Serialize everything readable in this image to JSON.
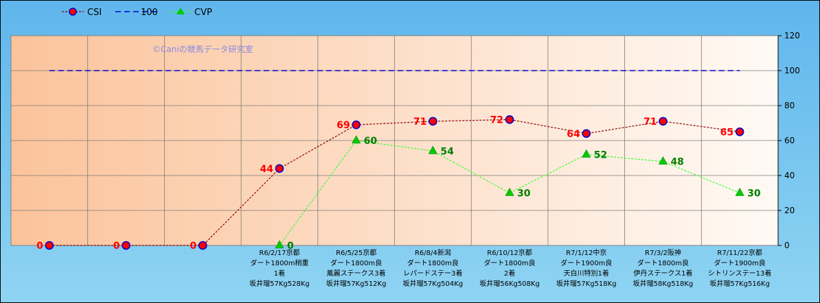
{
  "colors": {
    "csi_line": "#8b0000",
    "csi_marker": "#ff0000",
    "csi_marker_border": "#0000cc",
    "csi_label": "#ff0000",
    "cvp_line": "#33ff33",
    "cvp_marker": "#00cc00",
    "cvp_label": "#008000",
    "ref_line": "#0000cc",
    "bg_top": "#5fb6ec",
    "bg_bottom": "#8fd4f2",
    "plot_left": "#fbc39b",
    "plot_right": "#fffaf5",
    "grid": "#7a7a7a"
  },
  "watermark": "©Caniの競馬データ研究室",
  "chart_data": {
    "type": "line",
    "legend_position": "top-left",
    "grid": true,
    "ylim": [
      0,
      120
    ],
    "yticks": [
      "0",
      "20",
      "40",
      "60",
      "80",
      "100",
      "120"
    ],
    "y_axis_side": "right",
    "categories": [
      [],
      [],
      [],
      [
        "R6/2/17京都",
        "ダート1800m稍重",
        "1着",
        "坂井瑠57Kg528Kg"
      ],
      [
        "R6/5/25京都",
        "ダート1800m良",
        "鳳麗ステークス3着",
        "坂井瑠57Kg512Kg"
      ],
      [
        "R6/8/4新潟",
        "ダート1800m良",
        "レパードステー3着",
        "坂井瑠57Kg504Kg"
      ],
      [
        "R6/10/12京都",
        "ダート1800m良",
        "2着",
        "坂井瑠56Kg508Kg"
      ],
      [
        "R7/1/12中京",
        "ダート1900m良",
        "天白川特別1着",
        "坂井瑠57Kg518Kg"
      ],
      [
        "R7/3/2阪神",
        "ダート1800m良",
        "伊丹ステークス1着",
        "坂井瑠58Kg518Kg"
      ],
      [
        "R7/11/22京都",
        "ダート1900m良",
        "シトリンステー13着",
        "坂井瑠57Kg516Kg"
      ]
    ],
    "series": [
      {
        "name": "CSI",
        "values": [
          0,
          0,
          0,
          44,
          69,
          71,
          72,
          64,
          71,
          65
        ]
      },
      {
        "name": "100",
        "values": [
          100,
          100,
          100,
          100,
          100,
          100,
          100,
          100,
          100,
          100
        ]
      },
      {
        "name": "CVP",
        "values": [
          null,
          null,
          null,
          0,
          60,
          54,
          30,
          52,
          48,
          30
        ]
      }
    ]
  }
}
